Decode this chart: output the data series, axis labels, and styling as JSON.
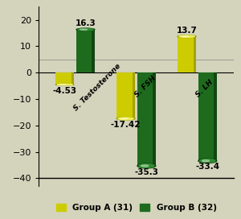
{
  "categories": [
    "S. Testosterone",
    "S. FSH",
    "S. LH"
  ],
  "group_a_values": [
    -4.53,
    -17.42,
    13.7
  ],
  "group_b_values": [
    16.3,
    -35.3,
    -33.4
  ],
  "group_a_color": "#CCCC00",
  "group_b_color": "#1E6B1E",
  "group_a_label": "Group A (31)",
  "group_b_label": "Group B (32)",
  "group_a_dark": "#999900",
  "group_b_dark": "#0F3D0F",
  "group_a_light": "#EEEE55",
  "group_b_light": "#2E8B2E",
  "ylim": [
    -43,
    25
  ],
  "yticks": [
    -40,
    -30,
    -20,
    -10,
    0,
    10,
    20
  ],
  "bar_width": 0.3,
  "background_color": "#D4D4BC",
  "hline_y": 5,
  "label_fontsize": 7.5,
  "tick_fontsize": 8,
  "legend_fontsize": 7.5
}
